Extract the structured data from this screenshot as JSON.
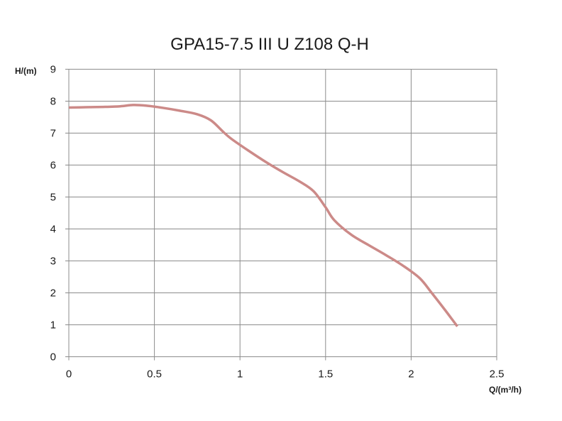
{
  "chart_data": {
    "type": "line",
    "title": "GPA15-7.5 III U Z108 Q-H",
    "xlabel": "Q/(m³/h)",
    "ylabel": "H/(m)",
    "xlim": [
      0,
      2.5
    ],
    "ylim": [
      0,
      9
    ],
    "x_ticks": [
      "0",
      "0.5",
      "1",
      "1.5",
      "2",
      "2.5"
    ],
    "y_ticks": [
      "0",
      "1",
      "2",
      "3",
      "4",
      "5",
      "6",
      "7",
      "8",
      "9"
    ],
    "grid": true,
    "series_color": "#cc8a88",
    "series": [
      {
        "x": [
          0,
          0.1,
          0.2,
          0.3,
          0.375,
          0.45,
          0.55,
          0.65,
          0.75,
          0.83,
          0.9,
          0.95,
          1.05,
          1.15,
          1.25,
          1.35,
          1.43,
          1.5,
          1.55,
          1.65,
          1.75,
          1.85,
          1.95,
          2.05,
          2.12,
          2.2,
          2.27
        ],
        "y": [
          7.8,
          7.81,
          7.82,
          7.84,
          7.88,
          7.86,
          7.79,
          7.7,
          7.59,
          7.4,
          7.05,
          6.82,
          6.45,
          6.1,
          5.78,
          5.48,
          5.18,
          4.68,
          4.28,
          3.82,
          3.5,
          3.19,
          2.86,
          2.46,
          2.0,
          1.45,
          0.95
        ]
      }
    ]
  }
}
